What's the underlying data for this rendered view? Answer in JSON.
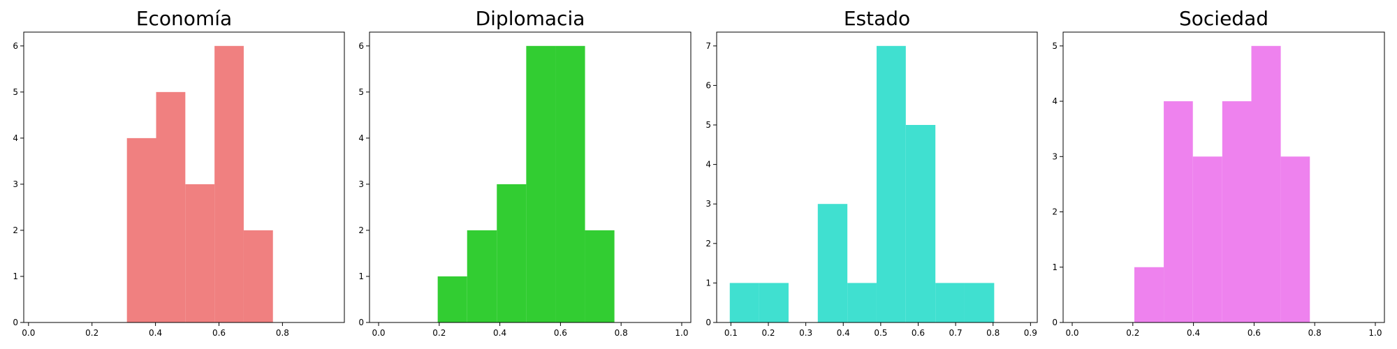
{
  "chart_data": [
    {
      "type": "bar",
      "title": "Economía",
      "color": "#f08080",
      "xlim": [
        -0.015,
        0.995
      ],
      "ylim": [
        0,
        6.3
      ],
      "xticks": [
        0.0,
        0.2,
        0.4,
        0.6,
        0.8
      ],
      "xtick_labels": [
        "0.0",
        "0.2",
        "0.4",
        "0.6",
        "0.8"
      ],
      "yticks": [
        0,
        1,
        2,
        3,
        4,
        5,
        6
      ],
      "ytick_labels": [
        "0",
        "1",
        "2",
        "3",
        "4",
        "5",
        "6"
      ],
      "bins": [
        {
          "start": 0.31,
          "end": 0.402,
          "count": 4
        },
        {
          "start": 0.402,
          "end": 0.494,
          "count": 5
        },
        {
          "start": 0.494,
          "end": 0.586,
          "count": 3
        },
        {
          "start": 0.586,
          "end": 0.678,
          "count": 6
        },
        {
          "start": 0.678,
          "end": 0.77,
          "count": 2
        }
      ]
    },
    {
      "type": "bar",
      "title": "Diplomacia",
      "color": "#32cd32",
      "xlim": [
        -0.03,
        1.03
      ],
      "ylim": [
        0,
        6.3
      ],
      "xticks": [
        0.0,
        0.2,
        0.4,
        0.6,
        0.8,
        1.0
      ],
      "xtick_labels": [
        "0.0",
        "0.2",
        "0.4",
        "0.6",
        "0.8",
        "1.0"
      ],
      "yticks": [
        0,
        1,
        2,
        3,
        4,
        5,
        6
      ],
      "ytick_labels": [
        "0",
        "1",
        "2",
        "3",
        "4",
        "5",
        "6"
      ],
      "bins": [
        {
          "start": 0.195,
          "end": 0.292,
          "count": 1
        },
        {
          "start": 0.292,
          "end": 0.39,
          "count": 2
        },
        {
          "start": 0.39,
          "end": 0.487,
          "count": 3
        },
        {
          "start": 0.487,
          "end": 0.584,
          "count": 6
        },
        {
          "start": 0.584,
          "end": 0.681,
          "count": 6
        },
        {
          "start": 0.681,
          "end": 0.778,
          "count": 2
        }
      ]
    },
    {
      "type": "bar",
      "title": "Estado",
      "color": "#40e0d0",
      "xlim": [
        0.062,
        0.918
      ],
      "ylim": [
        0,
        7.35
      ],
      "xticks": [
        0.1,
        0.2,
        0.3,
        0.4,
        0.5,
        0.6,
        0.7,
        0.8,
        0.9
      ],
      "xtick_labels": [
        "0.1",
        "0.2",
        "0.3",
        "0.4",
        "0.5",
        "0.6",
        "0.7",
        "0.8",
        "0.9"
      ],
      "yticks": [
        0,
        1,
        2,
        3,
        4,
        5,
        6,
        7
      ],
      "ytick_labels": [
        "0",
        "1",
        "2",
        "3",
        "4",
        "5",
        "6",
        "7"
      ],
      "bins": [
        {
          "start": 0.097,
          "end": 0.175,
          "count": 1
        },
        {
          "start": 0.175,
          "end": 0.254,
          "count": 1
        },
        {
          "start": 0.254,
          "end": 0.332,
          "count": 0
        },
        {
          "start": 0.332,
          "end": 0.411,
          "count": 3
        },
        {
          "start": 0.411,
          "end": 0.489,
          "count": 1
        },
        {
          "start": 0.489,
          "end": 0.567,
          "count": 7
        },
        {
          "start": 0.567,
          "end": 0.646,
          "count": 5
        },
        {
          "start": 0.646,
          "end": 0.724,
          "count": 1
        },
        {
          "start": 0.724,
          "end": 0.803,
          "count": 1
        }
      ]
    },
    {
      "type": "bar",
      "title": "Sociedad",
      "color": "#ee82ee",
      "xlim": [
        -0.03,
        1.03
      ],
      "ylim": [
        0,
        5.25
      ],
      "xticks": [
        0.0,
        0.2,
        0.4,
        0.6,
        0.8,
        1.0
      ],
      "xtick_labels": [
        "0.0",
        "0.2",
        "0.4",
        "0.6",
        "0.8",
        "1.0"
      ],
      "yticks": [
        0,
        1,
        2,
        3,
        4,
        5
      ],
      "ytick_labels": [
        "0",
        "1",
        "2",
        "3",
        "4",
        "5"
      ],
      "bins": [
        {
          "start": 0.205,
          "end": 0.302,
          "count": 1
        },
        {
          "start": 0.302,
          "end": 0.398,
          "count": 4
        },
        {
          "start": 0.398,
          "end": 0.495,
          "count": 3
        },
        {
          "start": 0.495,
          "end": 0.591,
          "count": 4
        },
        {
          "start": 0.591,
          "end": 0.688,
          "count": 5
        },
        {
          "start": 0.688,
          "end": 0.784,
          "count": 3
        }
      ]
    }
  ]
}
